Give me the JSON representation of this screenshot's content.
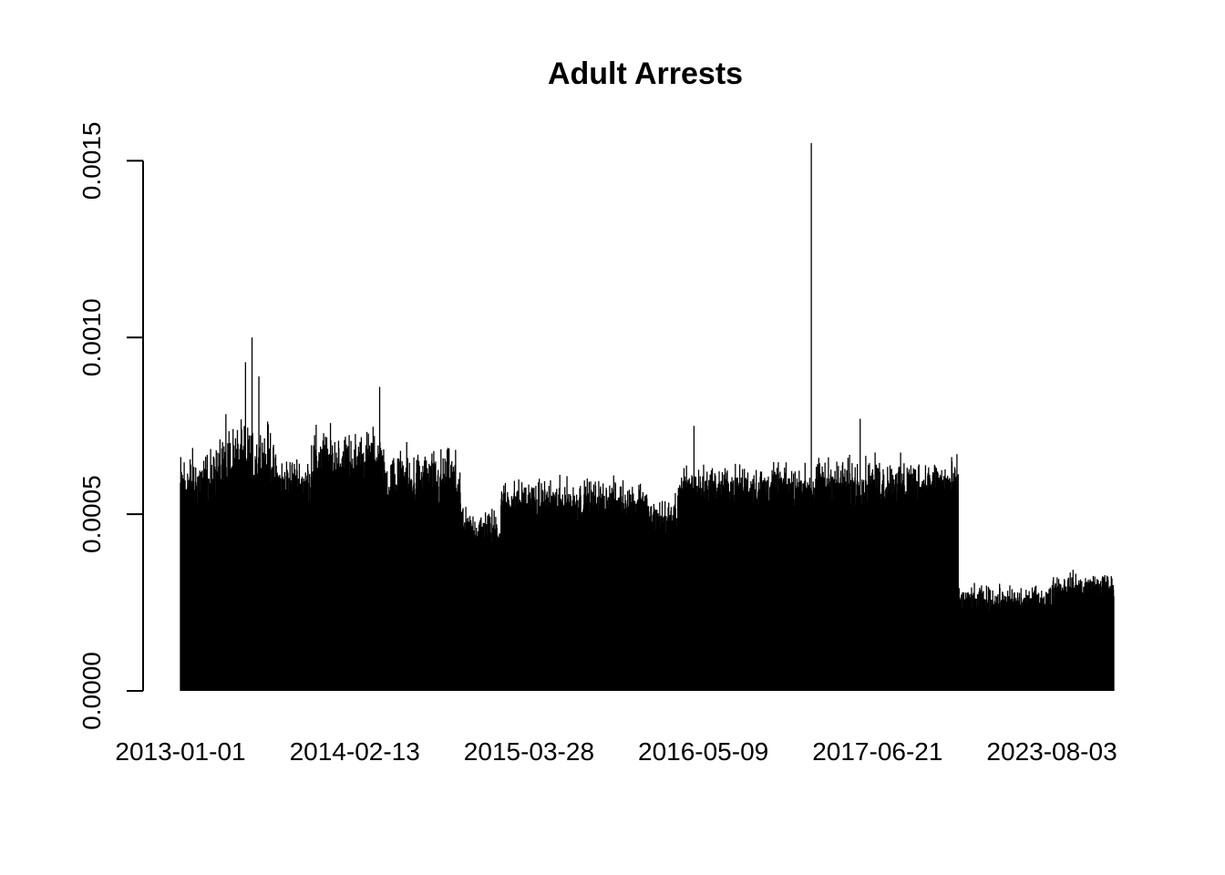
{
  "chart_data": {
    "type": "bar",
    "title": "Adult Arrests",
    "xlabel": "",
    "ylabel": "",
    "ylim": [
      0,
      0.00155
    ],
    "y_ticks": [
      {
        "value": 0,
        "label": "0.0000"
      },
      {
        "value": 0.0005,
        "label": "0.0005"
      },
      {
        "value": 0.001,
        "label": "0.0010"
      },
      {
        "value": 0.0015,
        "label": "0.0015"
      }
    ],
    "x_tick_labels": [
      "2013-01-01",
      "2014-02-13",
      "2015-03-28",
      "2016-05-09",
      "2017-06-21",
      "2023-08-03"
    ],
    "x_tick_positions": [
      0,
      560,
      1120,
      1680,
      2240,
      2800
    ],
    "n_bars": 3000,
    "grid": false,
    "legend": "none",
    "bar_color": "#000000",
    "segments": [
      {
        "start": 0,
        "end": 120,
        "level": 0.00058,
        "spread": 9e-05
      },
      {
        "start": 120,
        "end": 300,
        "level": 0.00064,
        "spread": 0.0001
      },
      {
        "start": 300,
        "end": 420,
        "level": 0.00058,
        "spread": 8e-05
      },
      {
        "start": 420,
        "end": 650,
        "level": 0.00064,
        "spread": 9e-05
      },
      {
        "start": 650,
        "end": 900,
        "level": 0.00058,
        "spread": 9e-05
      },
      {
        "start": 900,
        "end": 1030,
        "level": 0.00045,
        "spread": 6e-05
      },
      {
        "start": 1030,
        "end": 1500,
        "level": 0.00053,
        "spread": 6e-05
      },
      {
        "start": 1500,
        "end": 1600,
        "level": 0.00048,
        "spread": 6e-05
      },
      {
        "start": 1600,
        "end": 2050,
        "level": 0.00057,
        "spread": 6e-05
      },
      {
        "start": 2050,
        "end": 2500,
        "level": 0.00058,
        "spread": 7e-05
      },
      {
        "start": 2500,
        "end": 2800,
        "level": 0.00025,
        "spread": 4e-05
      },
      {
        "start": 2800,
        "end": 3000,
        "level": 0.00029,
        "spread": 4e-05
      }
    ],
    "spikes": [
      {
        "index": 230,
        "value": 0.001
      },
      {
        "index": 209,
        "value": 0.00093
      },
      {
        "index": 252,
        "value": 0.00089
      },
      {
        "index": 640,
        "value": 0.00086
      },
      {
        "index": 2027,
        "value": 0.00155
      },
      {
        "index": 1650,
        "value": 0.00075
      },
      {
        "index": 2184,
        "value": 0.00077
      }
    ]
  }
}
